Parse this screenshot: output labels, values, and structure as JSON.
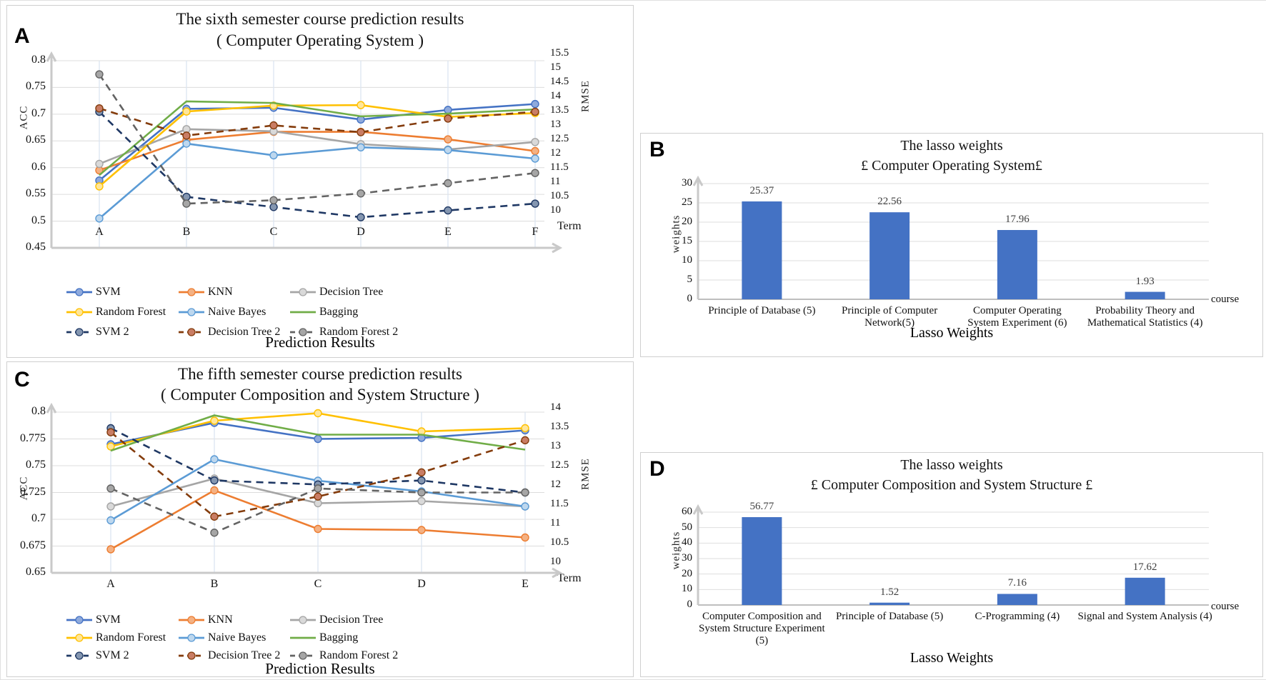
{
  "chart_data": [
    {
      "id": "A",
      "type": "line",
      "panel_letter": "A",
      "title": [
        "The sixth semester course prediction results",
        "( Computer Operating System )"
      ],
      "footer": "Prediction Results",
      "x": {
        "label": "Term",
        "categories": [
          "A",
          "B",
          "C",
          "D",
          "E",
          "F"
        ]
      },
      "y_left": {
        "label": "ACC",
        "range": [
          0.45,
          0.8
        ],
        "ticks": [
          "0.8",
          "0.75",
          "0.7",
          "0.65",
          "0.6",
          "0.55",
          "0.5",
          "0.45"
        ]
      },
      "y_right": {
        "label": "RMSE",
        "range": [
          10,
          15.5
        ],
        "ticks": [
          "15.5",
          "15",
          "14.5",
          "14",
          "13.5",
          "13",
          "12.5",
          "12",
          "11.5",
          "11",
          "10.5",
          "10"
        ]
      },
      "series": [
        {
          "name": "SVM",
          "axis": "left",
          "style": "solid",
          "color": "#4472C4",
          "marker": "#8FAADC",
          "values": [
            0.576,
            0.71,
            0.712,
            0.69,
            0.708,
            0.719
          ]
        },
        {
          "name": "KNN",
          "axis": "left",
          "style": "solid",
          "color": "#ED7D31",
          "marker": "#F4B183",
          "values": [
            0.595,
            0.652,
            0.667,
            0.667,
            0.653,
            0.631
          ]
        },
        {
          "name": "Decision Tree",
          "axis": "left",
          "style": "solid",
          "color": "#A5A5A5",
          "marker": "#D9D9D9",
          "values": [
            0.607,
            0.672,
            0.668,
            0.644,
            0.634,
            0.648
          ]
        },
        {
          "name": "Random Forest",
          "axis": "left",
          "style": "solid",
          "color": "#FFC000",
          "marker": "#FFE699",
          "values": [
            0.565,
            0.705,
            0.716,
            0.717,
            0.695,
            0.702
          ]
        },
        {
          "name": "Naive Bayes",
          "axis": "left",
          "style": "solid",
          "color": "#5B9BD5",
          "marker": "#BDD7EE",
          "values": [
            0.505,
            0.645,
            0.623,
            0.638,
            0.633,
            0.617
          ]
        },
        {
          "name": "Bagging",
          "axis": "left",
          "style": "solid",
          "color": "#70AD47",
          "marker": null,
          "values": [
            0.586,
            0.724,
            0.721,
            0.696,
            0.701,
            0.709
          ]
        },
        {
          "name": "SVM 2",
          "axis": "right",
          "style": "dashed",
          "color": "#1F3864",
          "marker": "#8496B0",
          "values": [
            14.0,
            11.5,
            11.2,
            10.9,
            11.1,
            11.3
          ]
        },
        {
          "name": "Decision Tree 2",
          "axis": "right",
          "style": "dashed",
          "color": "#843C0C",
          "marker": "#C97D64",
          "values": [
            14.1,
            13.3,
            13.6,
            13.4,
            13.8,
            14.0
          ]
        },
        {
          "name": "Random Forest 2",
          "axis": "right",
          "style": "dashed",
          "color": "#636363",
          "marker": "#A6A6A6",
          "values": [
            15.1,
            11.3,
            11.4,
            11.6,
            11.9,
            12.2
          ]
        }
      ],
      "legend_order": [
        [
          "SVM",
          "KNN",
          "Decision Tree"
        ],
        [
          "Random Forest",
          "Naive Bayes",
          "Bagging"
        ],
        [
          "SVM 2",
          "Decision Tree 2",
          "Random Forest 2"
        ]
      ]
    },
    {
      "id": "B",
      "type": "bar",
      "panel_letter": "B",
      "title": [
        "The lasso weights",
        "£  Computer Operating System£"
      ],
      "footer": "Lasso Weights",
      "bar_color": "#4472C4",
      "y": {
        "label": "weights",
        "range": [
          0,
          30
        ],
        "ticks": [
          "30",
          "25",
          "20",
          "15",
          "10",
          "5",
          "0"
        ]
      },
      "x_end_label": "course",
      "bars": [
        {
          "label": [
            "Principle of Database (5)"
          ],
          "value": 25.37
        },
        {
          "label": [
            "Principle of Computer",
            "Network(5)"
          ],
          "value": 22.56
        },
        {
          "label": [
            "Computer Operating",
            "System Experiment (6)"
          ],
          "value": 17.96
        },
        {
          "label": [
            "Probability Theory and",
            "Mathematical Statistics (4)"
          ],
          "value": 1.93
        }
      ]
    },
    {
      "id": "C",
      "type": "line",
      "panel_letter": "C",
      "title": [
        "The fifth semester course prediction results",
        "( Computer Composition and System Structure )"
      ],
      "footer": "Prediction Results",
      "x": {
        "label": "Term",
        "categories": [
          "A",
          "B",
          "C",
          "D",
          "E"
        ]
      },
      "y_left": {
        "label": "ACC",
        "range": [
          0.65,
          0.8
        ],
        "ticks": [
          "0.8",
          "0.775",
          "0.75",
          "0.725",
          "0.7",
          "0.675",
          "0.65"
        ]
      },
      "y_right": {
        "label": "RMSE",
        "range": [
          10,
          14
        ],
        "ticks": [
          "14",
          "13.5",
          "13",
          "12.5",
          "12",
          "11.5",
          "11",
          "10.5",
          "10"
        ]
      },
      "series": [
        {
          "name": "SVM",
          "axis": "left",
          "style": "solid",
          "color": "#4472C4",
          "marker": "#8FAADC",
          "values": [
            0.77,
            0.79,
            0.775,
            0.776,
            0.783
          ]
        },
        {
          "name": "KNN",
          "axis": "left",
          "style": "solid",
          "color": "#ED7D31",
          "marker": "#F4B183",
          "values": [
            0.672,
            0.727,
            0.691,
            0.69,
            0.683
          ]
        },
        {
          "name": "Decision Tree",
          "axis": "left",
          "style": "solid",
          "color": "#A5A5A5",
          "marker": "#D9D9D9",
          "values": [
            0.712,
            0.738,
            0.715,
            0.717,
            0.712
          ]
        },
        {
          "name": "Random Forest",
          "axis": "left",
          "style": "solid",
          "color": "#FFC000",
          "marker": "#FFE699",
          "values": [
            0.768,
            0.792,
            0.799,
            0.782,
            0.785
          ]
        },
        {
          "name": "Naive Bayes",
          "axis": "left",
          "style": "solid",
          "color": "#5B9BD5",
          "marker": "#BDD7EE",
          "values": [
            0.699,
            0.756,
            0.736,
            0.726,
            0.712
          ]
        },
        {
          "name": "Bagging",
          "axis": "left",
          "style": "solid",
          "color": "#70AD47",
          "marker": null,
          "values": [
            0.764,
            0.797,
            0.779,
            0.779,
            0.765
          ]
        },
        {
          "name": "SVM 2",
          "axis": "right",
          "style": "dashed",
          "color": "#1F3864",
          "marker": "#8496B0",
          "values": [
            13.6,
            12.3,
            12.2,
            12.3,
            12.0
          ]
        },
        {
          "name": "Decision Tree 2",
          "axis": "right",
          "style": "dashed",
          "color": "#843C0C",
          "marker": "#C97D64",
          "values": [
            13.5,
            11.4,
            11.9,
            12.5,
            13.3
          ]
        },
        {
          "name": "Random Forest 2",
          "axis": "right",
          "style": "dashed",
          "color": "#636363",
          "marker": "#A6A6A6",
          "values": [
            12.1,
            11.0,
            12.1,
            12.0,
            12.0
          ]
        }
      ],
      "legend_order": [
        [
          "SVM",
          "KNN",
          "Decision Tree"
        ],
        [
          "Random Forest",
          "Naive Bayes",
          "Bagging"
        ],
        [
          "SVM 2",
          "Decision Tree 2",
          "Random Forest 2"
        ]
      ]
    },
    {
      "id": "D",
      "type": "bar",
      "panel_letter": "D",
      "title": [
        "The lasso weights",
        "£  Computer Composition and System Structure £"
      ],
      "footer": "Lasso Weights",
      "bar_color": "#4472C4",
      "y": {
        "label": "weights",
        "range": [
          0,
          60
        ],
        "ticks": [
          "60",
          "50",
          "40",
          "30",
          "20",
          "10",
          "0"
        ]
      },
      "x_end_label": "course",
      "bars": [
        {
          "label": [
            "Computer Composition and",
            "System Structure Experiment",
            "(5)"
          ],
          "value": 56.77
        },
        {
          "label": [
            "Principle of Database (5)"
          ],
          "value": 1.52
        },
        {
          "label": [
            "C-Programming (4)"
          ],
          "value": 7.16
        },
        {
          "label": [
            "Signal and System Analysis (4)"
          ],
          "value": 17.62
        }
      ]
    }
  ]
}
